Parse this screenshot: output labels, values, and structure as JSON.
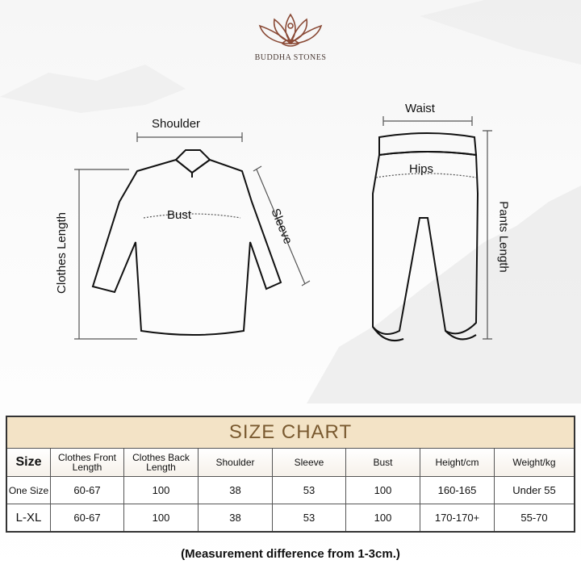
{
  "brand": {
    "name": "BUDDHA STONES",
    "logo_icon": "lotus-meditation-icon",
    "color": "#8a4a36"
  },
  "top_diagram": {
    "labels": {
      "shoulder": "Shoulder",
      "bust": "Bust",
      "sleeve": "Sleeve",
      "clothes_length": "Clothes Length"
    }
  },
  "pants_diagram": {
    "labels": {
      "waist": "Waist",
      "hips": "Hips",
      "pants_length": "Pants Length"
    }
  },
  "size_chart": {
    "title": "SIZE CHART",
    "title_bg": "#f3e3c6",
    "title_color": "#7a5a30",
    "headers": [
      "Size",
      "Clothes Front Length",
      "Clothes Back Length",
      "Shoulder",
      "Sleeve",
      "Bust",
      "Height/cm",
      "Weight/kg"
    ],
    "rows": [
      [
        "One Size",
        "60-67",
        "100",
        "38",
        "53",
        "100",
        "160-165",
        "Under 55"
      ],
      [
        "L-XL",
        "60-67",
        "100",
        "38",
        "53",
        "100",
        "170-170+",
        "55-70"
      ]
    ]
  },
  "note": "(Measurement difference from 1-3cm.)"
}
